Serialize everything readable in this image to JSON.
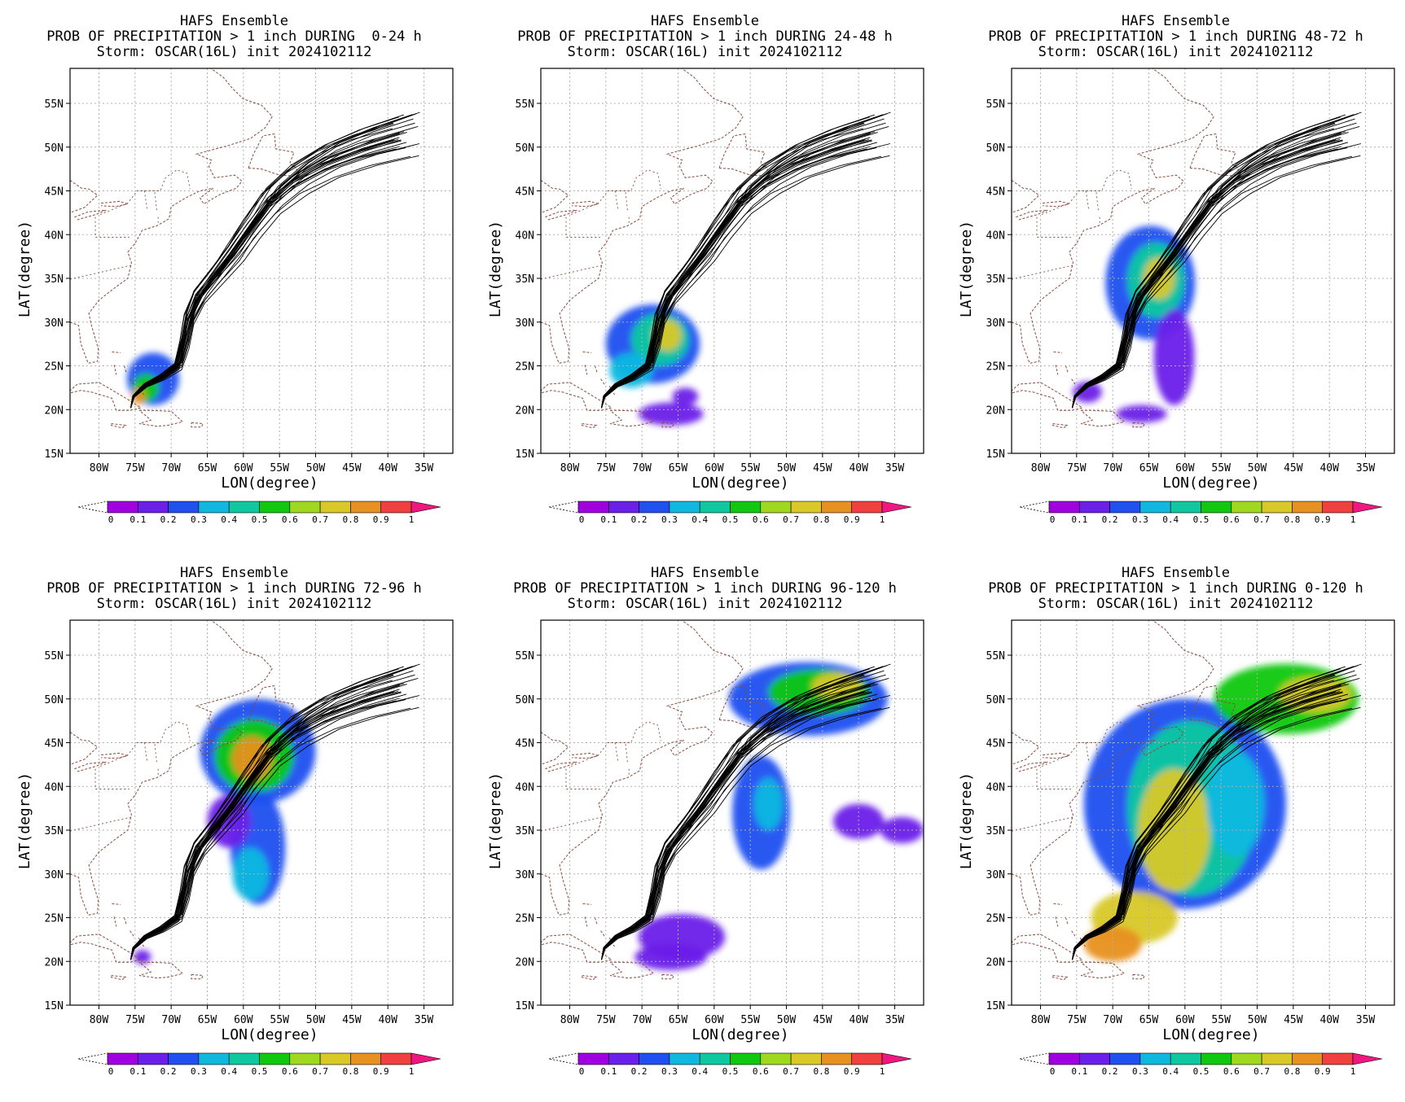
{
  "panel_title": "HAFS Ensemble",
  "storm_line": "Storm: OSCAR(16L) init 2024102112",
  "xlabel": "LON(degree)",
  "ylabel": "LAT(degree)",
  "lon_ticks": [
    "80W",
    "75W",
    "70W",
    "65W",
    "60W",
    "55W",
    "50W",
    "45W",
    "40W",
    "35W"
  ],
  "lat_ticks": [
    "55N",
    "50N",
    "45N",
    "40N",
    "35N",
    "30N",
    "25N",
    "20N",
    "15N"
  ],
  "colorbar": {
    "labels": [
      "0",
      "0.1",
      "0.2",
      "0.3",
      "0.4",
      "0.5",
      "0.6",
      "0.7",
      "0.8",
      "0.9",
      "1"
    ],
    "colors": [
      "#a000e0",
      "#6a20e8",
      "#2050f0",
      "#10b8e0",
      "#10c8a0",
      "#10c810",
      "#a0d820",
      "#d8c828",
      "#e89020",
      "#f04040",
      "#f01880"
    ]
  },
  "panels": [
    {
      "subtitle": "PROB OF PRECIPITATION > 1 inch DURING  0-24 h"
    },
    {
      "subtitle": "PROB OF PRECIPITATION > 1 inch DURING 24-48 h"
    },
    {
      "subtitle": "PROB OF PRECIPITATION > 1 inch DURING 48-72 h"
    },
    {
      "subtitle": "PROB OF PRECIPITATION > 1 inch DURING 72-96 h"
    },
    {
      "subtitle": "PROB OF PRECIPITATION > 1 inch DURING 96-120 h"
    },
    {
      "subtitle": "PROB OF PRECIPITATION > 1 inch DURING 0-120 h"
    }
  ]
}
